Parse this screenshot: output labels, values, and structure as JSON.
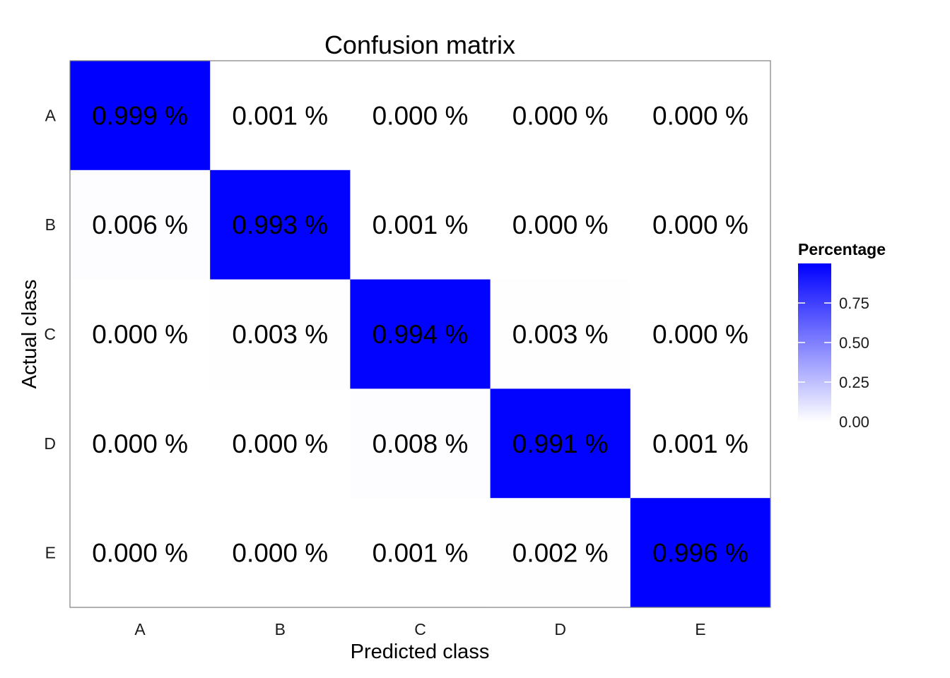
{
  "chart_data": {
    "type": "heatmap",
    "title": "Confusion matrix",
    "xlabel": "Predicted class",
    "ylabel": "Actual class",
    "x_categories": [
      "A",
      "B",
      "C",
      "D",
      "E"
    ],
    "y_categories": [
      "A",
      "B",
      "C",
      "D",
      "E"
    ],
    "values": [
      [
        0.999,
        0.001,
        0.0,
        0.0,
        0.0
      ],
      [
        0.006,
        0.993,
        0.001,
        0.0,
        0.0
      ],
      [
        0.0,
        0.003,
        0.994,
        0.003,
        0.0
      ],
      [
        0.0,
        0.0,
        0.008,
        0.991,
        0.001
      ],
      [
        0.0,
        0.0,
        0.001,
        0.002,
        0.996
      ]
    ],
    "cell_labels": [
      [
        "0.999 %",
        "0.001 %",
        "0.000 %",
        "0.000 %",
        "0.000 %"
      ],
      [
        "0.006 %",
        "0.993 %",
        "0.001 %",
        "0.000 %",
        "0.000 %"
      ],
      [
        "0.000 %",
        "0.003 %",
        "0.994 %",
        "0.003 %",
        "0.000 %"
      ],
      [
        "0.000 %",
        "0.000 %",
        "0.008 %",
        "0.991 %",
        "0.001 %"
      ],
      [
        "0.000 %",
        "0.000 %",
        "0.001 %",
        "0.002 %",
        "0.996 %"
      ]
    ],
    "legend": {
      "title": "Percentage",
      "ticks": [
        "0.00",
        "0.25",
        "0.50",
        "0.75"
      ],
      "tick_values": [
        0,
        0.25,
        0.5,
        0.75
      ],
      "range": [
        0,
        1
      ],
      "placement": "right"
    },
    "color_low": "#ffffff",
    "color_high": "#0000ff"
  }
}
